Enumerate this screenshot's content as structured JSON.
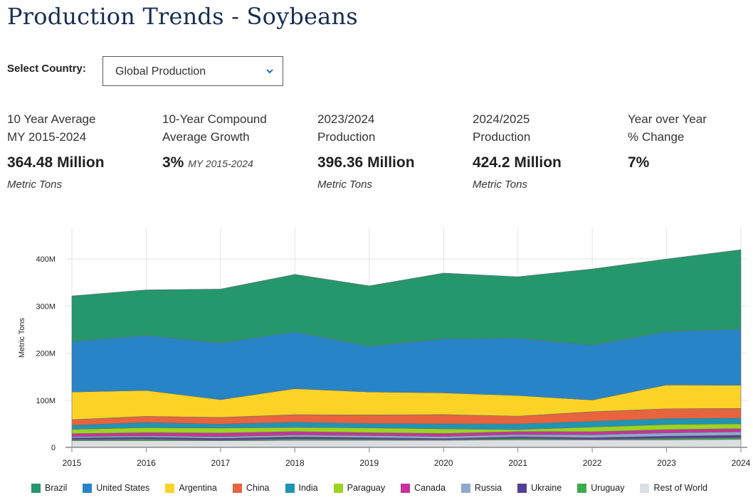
{
  "title": "Production Trends - Soybeans",
  "selector": {
    "label": "Select Country:",
    "value": "Global Production"
  },
  "stats": [
    {
      "label1": "10 Year Average",
      "label2": "MY 2015-2024",
      "value": "364.48 Million",
      "note": "",
      "unit": "Metric Tons"
    },
    {
      "label1": "10-Year Compound",
      "label2": "Average Growth",
      "value": "3%",
      "note": "MY 2015-2024",
      "unit": ""
    },
    {
      "label1": "2023/2024",
      "label2": "Production",
      "value": "396.36 Million",
      "note": "",
      "unit": "Metric Tons"
    },
    {
      "label1": "2024/2025",
      "label2": "Production",
      "value": "424.2 Million",
      "note": "",
      "unit": "Metric Tons"
    },
    {
      "label1": "Year over Year",
      "label2": "% Change",
      "value": "7%",
      "note": "",
      "unit": ""
    }
  ],
  "chart_data": {
    "type": "area",
    "stacked": true,
    "title": "",
    "xlabel": "",
    "ylabel": "Metric Tons",
    "x": [
      "2015",
      "2016",
      "2017",
      "2018",
      "2019",
      "2020",
      "2021",
      "2022",
      "2023",
      "2024"
    ],
    "ylim": [
      0,
      440
    ],
    "yticks": [
      {
        "v": 0,
        "label": "0"
      },
      {
        "v": 100,
        "label": "100M"
      },
      {
        "v": 200,
        "label": "200M"
      },
      {
        "v": 300,
        "label": "300M"
      },
      {
        "v": 400,
        "label": "400M"
      }
    ],
    "grid": true,
    "legend_position": "bottom",
    "series_units": "Million Metric Tons",
    "series": [
      {
        "name": "Brazil",
        "color": "#25976d",
        "values": [
          97.0,
          96.5,
          114.6,
          122.0,
          128.5,
          139.5,
          130.5,
          162.0,
          154.0,
          169.0
        ]
      },
      {
        "name": "United States",
        "color": "#2785c7",
        "values": [
          106.9,
          116.9,
          120.1,
          120.5,
          96.7,
          114.7,
          121.5,
          116.2,
          113.3,
          118.8
        ]
      },
      {
        "name": "Argentina",
        "color": "#fad326",
        "values": [
          58.8,
          55.0,
          37.8,
          55.3,
          48.8,
          46.2,
          43.9,
          25.0,
          50.6,
          49.0
        ]
      },
      {
        "name": "China",
        "color": "#e8643f",
        "values": [
          11.8,
          12.9,
          14.2,
          15.9,
          18.1,
          19.6,
          16.4,
          20.3,
          20.8,
          20.7
        ]
      },
      {
        "name": "India",
        "color": "#1f95b4",
        "values": [
          8.6,
          11.0,
          8.3,
          10.9,
          9.3,
          10.5,
          11.9,
          12.0,
          12.5,
          12.0
        ]
      },
      {
        "name": "Paraguay",
        "color": "#9cd41f",
        "values": [
          9.2,
          10.7,
          10.5,
          8.9,
          10.2,
          9.9,
          4.2,
          10.0,
          11.0,
          10.2
        ]
      },
      {
        "name": "Canada",
        "color": "#c7339a",
        "values": [
          6.2,
          6.6,
          7.7,
          7.3,
          6.1,
          6.4,
          6.3,
          6.5,
          7.0,
          6.8
        ]
      },
      {
        "name": "Russia",
        "color": "#8ea9cf",
        "values": [
          2.7,
          3.1,
          3.6,
          4.0,
          4.4,
          4.3,
          4.8,
          6.0,
          6.8,
          7.0
        ]
      },
      {
        "name": "Ukraine",
        "color": "#523f96",
        "values": [
          3.9,
          4.3,
          3.9,
          4.5,
          3.7,
          2.8,
          3.5,
          3.7,
          4.8,
          5.5
        ]
      },
      {
        "name": "Uruguay",
        "color": "#3cad4b",
        "values": [
          2.3,
          3.2,
          1.3,
          2.8,
          2.0,
          1.0,
          3.0,
          1.0,
          3.0,
          3.5
        ]
      },
      {
        "name": "Rest of World",
        "color": "#dcdfe2",
        "values": [
          14,
          14,
          14,
          15,
          15,
          15,
          16,
          16,
          16,
          17
        ]
      }
    ]
  }
}
